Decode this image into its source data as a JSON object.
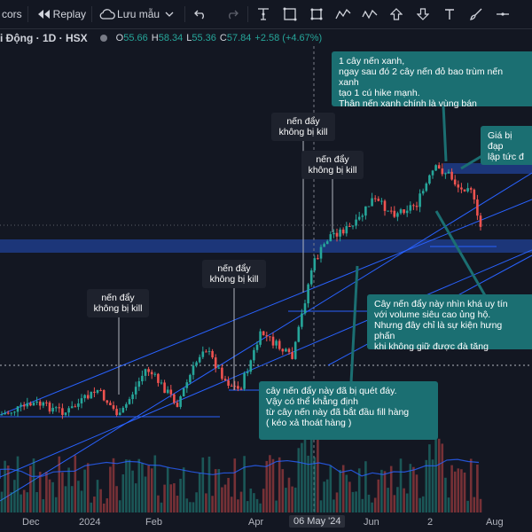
{
  "toolbar": {
    "indicators_label": "cors",
    "replay_label": "Replay",
    "template_label": "Lưu mẫu"
  },
  "legend": {
    "symbol": "i Động · 1D · HSX",
    "open_label": "O",
    "open": "55.66",
    "high_label": "H",
    "high": "58.34",
    "low_label": "L",
    "low": "55.36",
    "close_label": "C",
    "close": "57.84",
    "change": "+2.58 (+4.67%)"
  },
  "colors": {
    "up": "#26a69a",
    "down": "#ef5350",
    "trend": "#2962ff",
    "zone": "#1e3a8a",
    "callout": "#1b6f72"
  },
  "annotations": {
    "a1": "nến đẩy không bị kill",
    "a2": "nến đẩy không bị kill",
    "a3": "nến đẩy không bị kill",
    "a4": "nến đẩy không bị kill",
    "c1": "1 cây nến xanh,\nngay sau đó 2 cây nến đỏ bao trùm nến xanh\ntạo 1 cú hike mạnh.\nThân nến xanh chính là vùng bán",
    "c2": "Giá bị đạp\nlập tức đ",
    "c3": "Cây nến đẩy này nhìn khá uy tín\nvới volume siêu cao ủng hộ.\nNhưng đây chỉ là sự kiện hưng phấn\nkhi không giữ được đà tăng",
    "c4": "cây nến đẩy này đã bị quét đáy.\nVậy có thể khẳng định\ntừ cây nến này đã bắt đầu fill hàng\n( kéo xả thoát hàng )"
  },
  "xaxis": [
    "Dec",
    "2024",
    "Feb",
    "Apr",
    "06 May '24",
    "Jun",
    "2",
    "Aug"
  ],
  "chart_data": {
    "type": "candlestick",
    "x_ticks": [
      "Dec",
      "2024",
      "Feb",
      "Apr",
      "06 May '24",
      "Jun",
      "2",
      "Aug"
    ],
    "ohlc_last": {
      "open": 55.66,
      "high": 58.34,
      "low": 55.36,
      "close": 57.84,
      "change": 2.58,
      "change_pct": 4.67
    }
  }
}
